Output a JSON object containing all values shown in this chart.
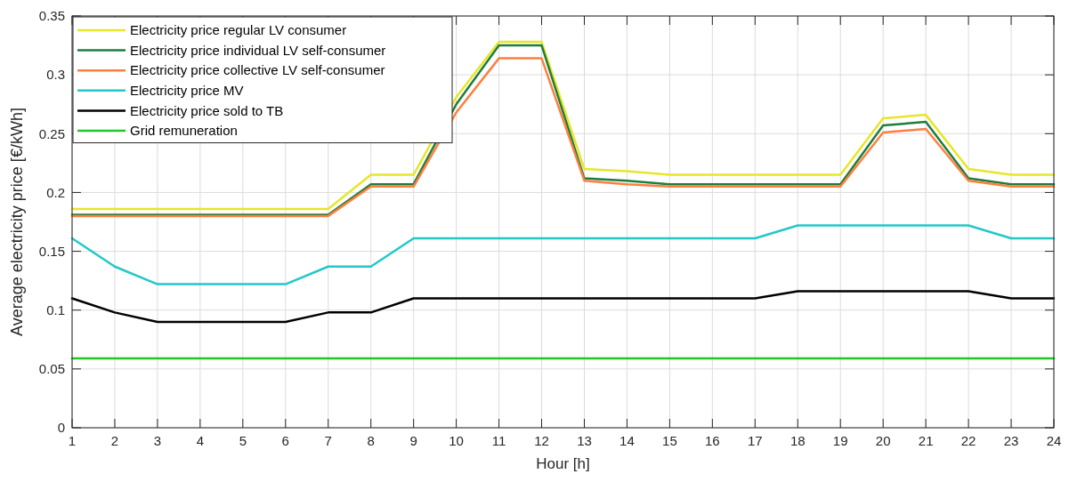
{
  "chart_data": {
    "type": "line",
    "xlabel": "Hour [h]",
    "ylabel": "Average electricity price [€/kWh]",
    "x": [
      1,
      2,
      3,
      4,
      5,
      6,
      7,
      8,
      9,
      10,
      11,
      12,
      13,
      14,
      15,
      16,
      17,
      18,
      19,
      20,
      21,
      22,
      23,
      24
    ],
    "xlim": [
      1,
      24
    ],
    "xticks": [
      1,
      2,
      3,
      4,
      5,
      6,
      7,
      8,
      9,
      10,
      11,
      12,
      13,
      14,
      15,
      16,
      17,
      18,
      19,
      20,
      21,
      22,
      23,
      24
    ],
    "ylim": [
      0,
      0.35
    ],
    "yticks": [
      0,
      0.05,
      0.1,
      0.15,
      0.2,
      0.25,
      0.3,
      0.35
    ],
    "grid": true,
    "legend": "top left",
    "line_style": "solid",
    "marker": "none",
    "series": [
      {
        "name": "Electricity price regular LV consumer",
        "color": "#e6e62a",
        "values": [
          0.186,
          0.186,
          0.186,
          0.186,
          0.186,
          0.186,
          0.186,
          0.215,
          0.215,
          0.281,
          0.328,
          0.328,
          0.22,
          0.218,
          0.215,
          0.215,
          0.215,
          0.215,
          0.215,
          0.263,
          0.266,
          0.22,
          0.215,
          0.215
        ]
      },
      {
        "name": "Electricity price individual LV self-consumer",
        "color": "#1e7d3c",
        "values": [
          0.181,
          0.181,
          0.181,
          0.181,
          0.181,
          0.181,
          0.181,
          0.207,
          0.207,
          0.275,
          0.325,
          0.325,
          0.212,
          0.21,
          0.207,
          0.207,
          0.207,
          0.207,
          0.207,
          0.257,
          0.26,
          0.212,
          0.207,
          0.207
        ]
      },
      {
        "name": "Electricity price collective LV self-consumer",
        "color": "#ff7f3f",
        "values": [
          0.18,
          0.18,
          0.18,
          0.18,
          0.18,
          0.18,
          0.18,
          0.205,
          0.205,
          0.268,
          0.314,
          0.314,
          0.21,
          0.207,
          0.205,
          0.205,
          0.205,
          0.205,
          0.205,
          0.251,
          0.254,
          0.21,
          0.205,
          0.205
        ]
      },
      {
        "name": "Electricity price MV",
        "color": "#22c8c8",
        "values": [
          0.161,
          0.137,
          0.122,
          0.122,
          0.122,
          0.122,
          0.137,
          0.137,
          0.161,
          0.161,
          0.161,
          0.161,
          0.161,
          0.161,
          0.161,
          0.161,
          0.161,
          0.172,
          0.172,
          0.172,
          0.172,
          0.172,
          0.161,
          0.161
        ]
      },
      {
        "name": "Electricity price sold to TB",
        "color": "#000000",
        "values": [
          0.11,
          0.098,
          0.09,
          0.09,
          0.09,
          0.09,
          0.098,
          0.098,
          0.11,
          0.11,
          0.11,
          0.11,
          0.11,
          0.11,
          0.11,
          0.11,
          0.11,
          0.116,
          0.116,
          0.116,
          0.116,
          0.116,
          0.11,
          0.11
        ]
      },
      {
        "name": "Grid remuneration",
        "color": "#22c822",
        "values": [
          0.059,
          0.059,
          0.059,
          0.059,
          0.059,
          0.059,
          0.059,
          0.059,
          0.059,
          0.059,
          0.059,
          0.059,
          0.059,
          0.059,
          0.059,
          0.059,
          0.059,
          0.059,
          0.059,
          0.059,
          0.059,
          0.059,
          0.059,
          0.059
        ]
      }
    ]
  }
}
